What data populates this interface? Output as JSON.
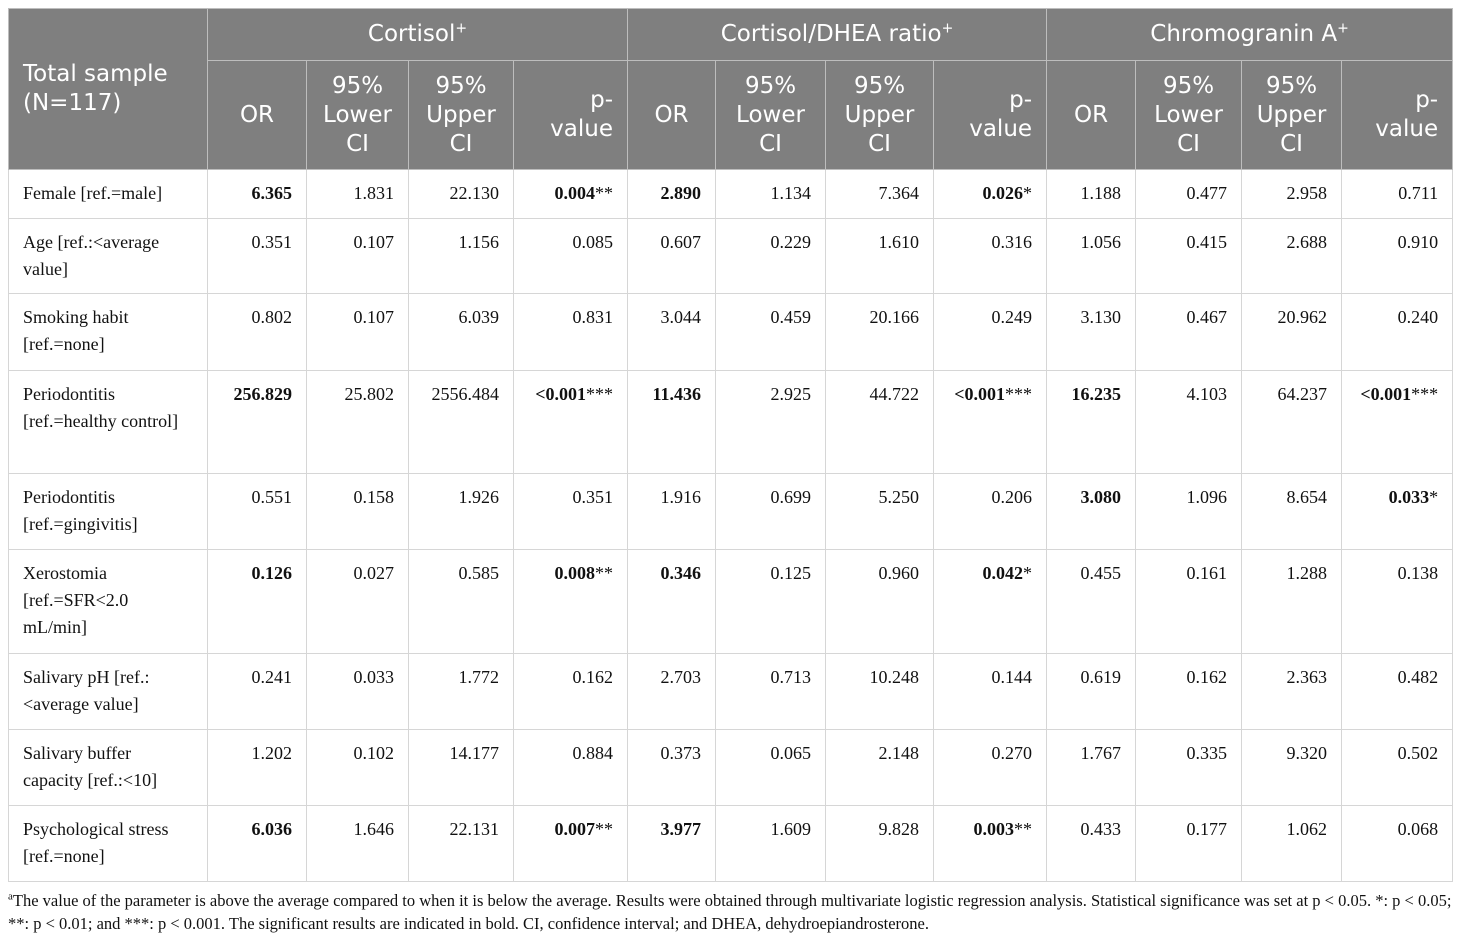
{
  "table": {
    "stub_header": "Total sample (N=117)",
    "groups": [
      {
        "name": "Cortisol",
        "sup": "+"
      },
      {
        "name": "Cortisol/DHEA ratio",
        "sup": "+"
      },
      {
        "name": "Chromogranin A",
        "sup": "+"
      }
    ],
    "subheaders": [
      "OR",
      "95% Lower CI",
      "95% Upper CI",
      "p-value"
    ],
    "rows": [
      {
        "label": "Female [ref.=male]",
        "h": 49,
        "cells": [
          {
            "v": "6.365",
            "b": true
          },
          {
            "v": "1.831"
          },
          {
            "v": "22.130"
          },
          {
            "v": "0.004",
            "b": true,
            "s": "**"
          },
          {
            "v": "2.890",
            "b": true
          },
          {
            "v": "1.134"
          },
          {
            "v": "7.364"
          },
          {
            "v": "0.026",
            "b": true,
            "s": "*"
          },
          {
            "v": "1.188"
          },
          {
            "v": "0.477"
          },
          {
            "v": "2.958"
          },
          {
            "v": "0.711"
          }
        ]
      },
      {
        "label": "Age [ref.:<average value]",
        "h": 75,
        "cells": [
          {
            "v": "0.351"
          },
          {
            "v": "0.107"
          },
          {
            "v": "1.156"
          },
          {
            "v": "0.085"
          },
          {
            "v": "0.607"
          },
          {
            "v": "0.229"
          },
          {
            "v": "1.610"
          },
          {
            "v": "0.316"
          },
          {
            "v": "1.056"
          },
          {
            "v": "0.415"
          },
          {
            "v": "2.688"
          },
          {
            "v": "0.910"
          }
        ]
      },
      {
        "label": "Smoking habit [ref.=none]",
        "h": 77,
        "cells": [
          {
            "v": "0.802"
          },
          {
            "v": "0.107"
          },
          {
            "v": "6.039"
          },
          {
            "v": "0.831"
          },
          {
            "v": "3.044"
          },
          {
            "v": "0.459"
          },
          {
            "v": "20.166"
          },
          {
            "v": "0.249"
          },
          {
            "v": "3.130"
          },
          {
            "v": "0.467"
          },
          {
            "v": "20.962"
          },
          {
            "v": "0.240"
          }
        ]
      },
      {
        "label": "Periodontitis [ref.=healthy control]",
        "h": 103,
        "cells": [
          {
            "v": "256.829",
            "b": true
          },
          {
            "v": "25.802"
          },
          {
            "v": "2556.484"
          },
          {
            "v": "<0.001",
            "b": true,
            "s": "***"
          },
          {
            "v": "11.436",
            "b": true
          },
          {
            "v": "2.925"
          },
          {
            "v": "44.722"
          },
          {
            "v": "<0.001",
            "b": true,
            "s": "***"
          },
          {
            "v": "16.235",
            "b": true
          },
          {
            "v": "4.103"
          },
          {
            "v": "64.237"
          },
          {
            "v": "<0.001",
            "b": true,
            "s": "***"
          }
        ]
      },
      {
        "label": "Periodontitis [ref.=gingivitis]",
        "h": 76,
        "cells": [
          {
            "v": "0.551"
          },
          {
            "v": "0.158"
          },
          {
            "v": "1.926"
          },
          {
            "v": "0.351"
          },
          {
            "v": "1.916"
          },
          {
            "v": "0.699"
          },
          {
            "v": "5.250"
          },
          {
            "v": "0.206"
          },
          {
            "v": "3.080",
            "b": true
          },
          {
            "v": "1.096"
          },
          {
            "v": "8.654"
          },
          {
            "v": "0.033",
            "b": true,
            "s": "*"
          }
        ]
      },
      {
        "label": "Xerostomia [ref.=SFR<2.0 mL/min]",
        "h": 104,
        "cells": [
          {
            "v": "0.126",
            "b": true
          },
          {
            "v": "0.027"
          },
          {
            "v": "0.585"
          },
          {
            "v": "0.008",
            "b": true,
            "s": "**"
          },
          {
            "v": "0.346",
            "b": true
          },
          {
            "v": "0.125"
          },
          {
            "v": "0.960"
          },
          {
            "v": "0.042",
            "b": true,
            "s": "*"
          },
          {
            "v": "0.455"
          },
          {
            "v": "0.161"
          },
          {
            "v": "1.288"
          },
          {
            "v": "0.138"
          }
        ]
      },
      {
        "label": "Salivary pH [ref.:<average value]",
        "h": 76,
        "cells": [
          {
            "v": "0.241"
          },
          {
            "v": "0.033"
          },
          {
            "v": "1.772"
          },
          {
            "v": "0.162"
          },
          {
            "v": "2.703"
          },
          {
            "v": "0.713"
          },
          {
            "v": "10.248"
          },
          {
            "v": "0.144"
          },
          {
            "v": "0.619"
          },
          {
            "v": "0.162"
          },
          {
            "v": "2.363"
          },
          {
            "v": "0.482"
          }
        ]
      },
      {
        "label": "Salivary buffer capacity [ref.:<10]",
        "h": 76,
        "cells": [
          {
            "v": "1.202"
          },
          {
            "v": "0.102"
          },
          {
            "v": "14.177"
          },
          {
            "v": "0.884"
          },
          {
            "v": "0.373"
          },
          {
            "v": "0.065"
          },
          {
            "v": "2.148"
          },
          {
            "v": "0.270"
          },
          {
            "v": "1.767"
          },
          {
            "v": "0.335"
          },
          {
            "v": "9.320"
          },
          {
            "v": "0.502"
          }
        ]
      },
      {
        "label": "Psychological stress [ref.=none]",
        "h": 76,
        "cells": [
          {
            "v": "6.036",
            "b": true
          },
          {
            "v": "1.646"
          },
          {
            "v": "22.131"
          },
          {
            "v": "0.007",
            "b": true,
            "s": "**"
          },
          {
            "v": "3.977",
            "b": true
          },
          {
            "v": "1.609"
          },
          {
            "v": "9.828"
          },
          {
            "v": "0.003",
            "b": true,
            "s": "**"
          },
          {
            "v": "0.433"
          },
          {
            "v": "0.177"
          },
          {
            "v": "1.062"
          },
          {
            "v": "0.068"
          }
        ]
      }
    ]
  },
  "footnote": {
    "marker": "a",
    "text": "The value of the parameter is above the average compared to when it is below the average. Results were obtained through multivariate logistic regression analysis. Statistical significance was set at p < 0.05. *: p < 0.05; **: p < 0.01; and ***: p < 0.001. The significant results are indicated in bold. CI, confidence interval; and DHEA, dehydroepiandrosterone."
  }
}
